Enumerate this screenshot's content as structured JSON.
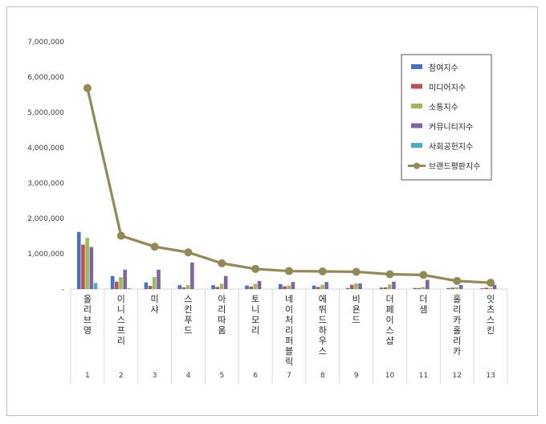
{
  "chart_data": {
    "type": "bar",
    "title": "",
    "xlabel": "",
    "ylabel": "",
    "ylim": [
      0,
      7000000
    ],
    "yticks": [
      "-",
      "1,000,000",
      "2,000,000",
      "3,000,000",
      "4,000,000",
      "5,000,000",
      "6,000,000",
      "7,000,000"
    ],
    "grid": false,
    "legend_position": "top-right",
    "categories": [
      "올리브영",
      "이니스프리",
      "미샤",
      "스킨푸드",
      "아리따움",
      "토니모리",
      "네이처리퍼블릭",
      "에뛰드하우스",
      "비욘드",
      "더페이스샵",
      "더샘",
      "홀리카홀리카",
      "잇츠스킨"
    ],
    "category_numbers": [
      "1",
      "2",
      "3",
      "4",
      "5",
      "6",
      "7",
      "8",
      "9",
      "10",
      "11",
      "12",
      "13"
    ],
    "series": [
      {
        "name": "참여지수",
        "type": "bar",
        "color": "#4472c4",
        "values": [
          1620000,
          370000,
          190000,
          110000,
          110000,
          100000,
          140000,
          100000,
          30000,
          40000,
          30000,
          30000,
          20000
        ]
      },
      {
        "name": "미디어지수",
        "type": "bar",
        "color": "#c0504d",
        "values": [
          1260000,
          210000,
          90000,
          50000,
          60000,
          70000,
          80000,
          60000,
          120000,
          50000,
          30000,
          40000,
          40000
        ]
      },
      {
        "name": "소통지수",
        "type": "bar",
        "color": "#9bbb59",
        "values": [
          1450000,
          340000,
          340000,
          110000,
          150000,
          150000,
          100000,
          120000,
          160000,
          130000,
          60000,
          50000,
          30000
        ]
      },
      {
        "name": "커뮤니티지수",
        "type": "bar",
        "color": "#8064a2",
        "values": [
          1190000,
          550000,
          550000,
          750000,
          370000,
          230000,
          200000,
          200000,
          160000,
          210000,
          260000,
          110000,
          120000
        ]
      },
      {
        "name": "사회공헌지수",
        "type": "bar",
        "color": "#4bacc6",
        "values": [
          170000,
          20000,
          0,
          0,
          0,
          0,
          0,
          0,
          0,
          0,
          0,
          0,
          0
        ]
      },
      {
        "name": "브랜드평판지수",
        "type": "line",
        "color": "#938953",
        "values": [
          5690000,
          1510000,
          1200000,
          1040000,
          730000,
          570000,
          510000,
          500000,
          490000,
          420000,
          400000,
          230000,
          180000
        ]
      }
    ]
  }
}
